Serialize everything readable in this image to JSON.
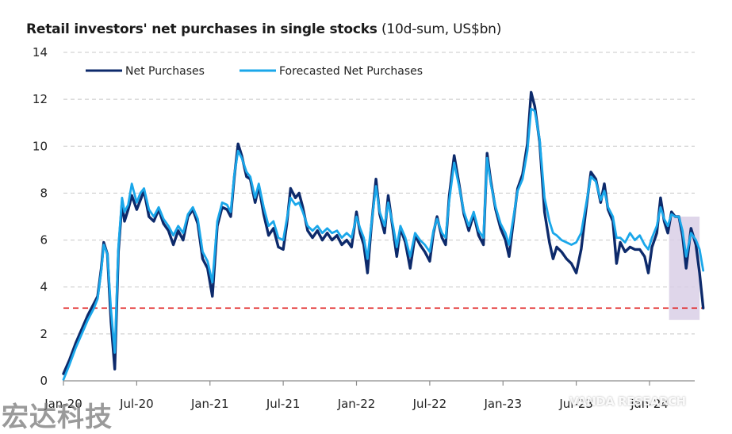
{
  "chart_data": {
    "type": "line",
    "title": "Retail investors' net purchases in single stocks",
    "title_suffix": "(10d-sum, US$bn)",
    "xlabel": "",
    "ylabel": "",
    "ylim": [
      0,
      14
    ],
    "yticks": [
      0,
      2,
      4,
      6,
      8,
      10,
      12,
      14
    ],
    "ytick_labels": [
      "0",
      "2",
      "4",
      "6",
      "8",
      "10",
      "12",
      "14"
    ],
    "x_unit": "months since Jan-20",
    "xlim": [
      0,
      52.5
    ],
    "xticks": [
      0,
      6,
      12,
      18,
      24,
      30,
      36,
      42,
      48
    ],
    "xtick_labels": [
      "Jan-20",
      "Jul-20",
      "Jan-21",
      "Jul-21",
      "Jan-22",
      "Jul-22",
      "Jan-23",
      "Jul-23",
      "Jan-24"
    ],
    "grid": "horizontal-dashed",
    "legend": {
      "placement": "top-left",
      "entries": [
        "Net Purchases",
        "Forecasted Net Purchases"
      ]
    },
    "reference_line": {
      "y": 3.1,
      "color": "#e02020",
      "style": "dashed"
    },
    "highlight_region": {
      "x": [
        49.6,
        52.1
      ],
      "y": [
        2.6,
        7.0
      ],
      "color": "#d9cfe6"
    },
    "series": [
      {
        "name": "Net Purchases",
        "color": "#0d2a6b",
        "points": [
          [
            0,
            0.3
          ],
          [
            0.5,
            0.9
          ],
          [
            1,
            1.6
          ],
          [
            1.5,
            2.2
          ],
          [
            2,
            2.8
          ],
          [
            2.5,
            3.3
          ],
          [
            2.8,
            3.6
          ],
          [
            3.1,
            4.8
          ],
          [
            3.3,
            5.9
          ],
          [
            3.6,
            5.4
          ],
          [
            3.9,
            2.5
          ],
          [
            4.2,
            0.5
          ],
          [
            4.5,
            5.5
          ],
          [
            4.8,
            7.6
          ],
          [
            5.0,
            6.8
          ],
          [
            5.3,
            7.3
          ],
          [
            5.6,
            7.9
          ],
          [
            6.0,
            7.3
          ],
          [
            6.3,
            7.7
          ],
          [
            6.6,
            8.1
          ],
          [
            7.0,
            7.0
          ],
          [
            7.4,
            6.8
          ],
          [
            7.8,
            7.3
          ],
          [
            8.2,
            6.7
          ],
          [
            8.6,
            6.4
          ],
          [
            9.0,
            5.8
          ],
          [
            9.4,
            6.4
          ],
          [
            9.8,
            6.0
          ],
          [
            10.2,
            7.0
          ],
          [
            10.6,
            7.3
          ],
          [
            11.0,
            6.7
          ],
          [
            11.4,
            5.2
          ],
          [
            11.8,
            4.8
          ],
          [
            12.2,
            3.6
          ],
          [
            12.6,
            6.6
          ],
          [
            13.0,
            7.4
          ],
          [
            13.4,
            7.3
          ],
          [
            13.7,
            7.0
          ],
          [
            14.0,
            8.7
          ],
          [
            14.3,
            10.1
          ],
          [
            14.6,
            9.6
          ],
          [
            15.0,
            8.7
          ],
          [
            15.3,
            8.6
          ],
          [
            15.7,
            7.6
          ],
          [
            16.0,
            8.3
          ],
          [
            16.4,
            7.1
          ],
          [
            16.8,
            6.2
          ],
          [
            17.2,
            6.5
          ],
          [
            17.6,
            5.7
          ],
          [
            18.0,
            5.6
          ],
          [
            18.3,
            6.7
          ],
          [
            18.6,
            8.2
          ],
          [
            19.0,
            7.8
          ],
          [
            19.3,
            8.0
          ],
          [
            19.6,
            7.4
          ],
          [
            20.0,
            6.4
          ],
          [
            20.4,
            6.1
          ],
          [
            20.8,
            6.4
          ],
          [
            21.2,
            6.0
          ],
          [
            21.6,
            6.3
          ],
          [
            22.0,
            6.0
          ],
          [
            22.4,
            6.2
          ],
          [
            22.8,
            5.8
          ],
          [
            23.2,
            6.0
          ],
          [
            23.6,
            5.7
          ],
          [
            24.0,
            7.2
          ],
          [
            24.3,
            6.3
          ],
          [
            24.6,
            5.8
          ],
          [
            24.9,
            4.6
          ],
          [
            25.2,
            6.5
          ],
          [
            25.6,
            8.6
          ],
          [
            25.9,
            7.1
          ],
          [
            26.3,
            6.3
          ],
          [
            26.6,
            7.9
          ],
          [
            27.0,
            6.4
          ],
          [
            27.3,
            5.3
          ],
          [
            27.6,
            6.5
          ],
          [
            28.0,
            5.9
          ],
          [
            28.4,
            4.8
          ],
          [
            28.8,
            6.2
          ],
          [
            29.2,
            5.8
          ],
          [
            29.6,
            5.5
          ],
          [
            30.0,
            5.1
          ],
          [
            30.3,
            6.3
          ],
          [
            30.6,
            7.0
          ],
          [
            31.0,
            6.1
          ],
          [
            31.3,
            5.8
          ],
          [
            31.6,
            7.9
          ],
          [
            32.0,
            9.6
          ],
          [
            32.4,
            8.4
          ],
          [
            32.8,
            7.1
          ],
          [
            33.2,
            6.4
          ],
          [
            33.6,
            7.1
          ],
          [
            34.0,
            6.2
          ],
          [
            34.4,
            5.8
          ],
          [
            34.7,
            9.7
          ],
          [
            35.0,
            8.5
          ],
          [
            35.4,
            7.3
          ],
          [
            35.8,
            6.5
          ],
          [
            36.2,
            6.0
          ],
          [
            36.5,
            5.3
          ],
          [
            36.8,
            6.6
          ],
          [
            37.2,
            8.2
          ],
          [
            37.6,
            8.8
          ],
          [
            38.0,
            10.1
          ],
          [
            38.3,
            12.3
          ],
          [
            38.6,
            11.7
          ],
          [
            39.0,
            10.2
          ],
          [
            39.4,
            7.2
          ],
          [
            39.8,
            5.9
          ],
          [
            40.1,
            5.2
          ],
          [
            40.4,
            5.7
          ],
          [
            40.8,
            5.5
          ],
          [
            41.2,
            5.2
          ],
          [
            41.6,
            5.0
          ],
          [
            42.0,
            4.6
          ],
          [
            42.4,
            5.6
          ],
          [
            42.8,
            7.3
          ],
          [
            43.2,
            8.9
          ],
          [
            43.6,
            8.6
          ],
          [
            44.0,
            7.6
          ],
          [
            44.3,
            8.4
          ],
          [
            44.6,
            7.3
          ],
          [
            45.0,
            6.8
          ],
          [
            45.3,
            5.0
          ],
          [
            45.6,
            5.9
          ],
          [
            46.0,
            5.5
          ],
          [
            46.4,
            5.7
          ],
          [
            46.8,
            5.6
          ],
          [
            47.2,
            5.6
          ],
          [
            47.6,
            5.3
          ],
          [
            47.9,
            4.6
          ],
          [
            48.2,
            5.7
          ],
          [
            48.6,
            6.3
          ],
          [
            48.9,
            7.8
          ],
          [
            49.2,
            6.8
          ],
          [
            49.5,
            6.3
          ],
          [
            49.8,
            7.2
          ],
          [
            50.1,
            7.0
          ],
          [
            50.4,
            7.0
          ],
          [
            50.7,
            6.2
          ],
          [
            51.0,
            4.8
          ],
          [
            51.4,
            6.5
          ],
          [
            51.8,
            5.8
          ],
          [
            52.1,
            4.6
          ],
          [
            52.4,
            3.1
          ]
        ]
      },
      {
        "name": "Forecasted Net Purchases",
        "color": "#1aa7ea",
        "points": [
          [
            0,
            0.05
          ],
          [
            0.5,
            0.7
          ],
          [
            1,
            1.4
          ],
          [
            1.5,
            2.0
          ],
          [
            2,
            2.6
          ],
          [
            2.5,
            3.1
          ],
          [
            2.8,
            3.5
          ],
          [
            3.1,
            4.7
          ],
          [
            3.3,
            5.8
          ],
          [
            3.6,
            5.4
          ],
          [
            3.9,
            3.0
          ],
          [
            4.2,
            1.2
          ],
          [
            4.5,
            5.7
          ],
          [
            4.8,
            7.8
          ],
          [
            5.0,
            7.2
          ],
          [
            5.3,
            7.5
          ],
          [
            5.6,
            8.4
          ],
          [
            6.0,
            7.6
          ],
          [
            6.3,
            8.0
          ],
          [
            6.6,
            8.2
          ],
          [
            7.0,
            7.3
          ],
          [
            7.4,
            7.0
          ],
          [
            7.8,
            7.4
          ],
          [
            8.2,
            6.9
          ],
          [
            8.6,
            6.6
          ],
          [
            9.0,
            6.2
          ],
          [
            9.4,
            6.6
          ],
          [
            9.8,
            6.3
          ],
          [
            10.2,
            7.1
          ],
          [
            10.6,
            7.4
          ],
          [
            11.0,
            6.9
          ],
          [
            11.4,
            5.5
          ],
          [
            11.8,
            5.1
          ],
          [
            12.2,
            4.2
          ],
          [
            12.6,
            6.8
          ],
          [
            13.0,
            7.6
          ],
          [
            13.4,
            7.5
          ],
          [
            13.7,
            7.2
          ],
          [
            14.0,
            8.8
          ],
          [
            14.3,
            9.8
          ],
          [
            14.6,
            9.5
          ],
          [
            15.0,
            8.9
          ],
          [
            15.3,
            8.7
          ],
          [
            15.7,
            7.8
          ],
          [
            16.0,
            8.4
          ],
          [
            16.4,
            7.4
          ],
          [
            16.8,
            6.6
          ],
          [
            17.2,
            6.8
          ],
          [
            17.6,
            6.1
          ],
          [
            18.0,
            6.0
          ],
          [
            18.3,
            6.9
          ],
          [
            18.6,
            7.8
          ],
          [
            19.0,
            7.5
          ],
          [
            19.3,
            7.6
          ],
          [
            19.6,
            7.2
          ],
          [
            20.0,
            6.6
          ],
          [
            20.4,
            6.4
          ],
          [
            20.8,
            6.6
          ],
          [
            21.2,
            6.3
          ],
          [
            21.6,
            6.5
          ],
          [
            22.0,
            6.3
          ],
          [
            22.4,
            6.4
          ],
          [
            22.8,
            6.1
          ],
          [
            23.2,
            6.3
          ],
          [
            23.6,
            6.1
          ],
          [
            24.0,
            7.0
          ],
          [
            24.3,
            6.5
          ],
          [
            24.6,
            6.1
          ],
          [
            24.9,
            5.2
          ],
          [
            25.2,
            6.6
          ],
          [
            25.6,
            8.3
          ],
          [
            25.9,
            7.2
          ],
          [
            26.3,
            6.6
          ],
          [
            26.6,
            7.6
          ],
          [
            27.0,
            6.6
          ],
          [
            27.3,
            5.7
          ],
          [
            27.6,
            6.6
          ],
          [
            28.0,
            6.1
          ],
          [
            28.4,
            5.3
          ],
          [
            28.8,
            6.3
          ],
          [
            29.2,
            6.0
          ],
          [
            29.6,
            5.8
          ],
          [
            30.0,
            5.5
          ],
          [
            30.3,
            6.4
          ],
          [
            30.6,
            6.9
          ],
          [
            31.0,
            6.3
          ],
          [
            31.3,
            6.1
          ],
          [
            31.6,
            7.7
          ],
          [
            32.0,
            9.3
          ],
          [
            32.4,
            8.3
          ],
          [
            32.8,
            7.2
          ],
          [
            33.2,
            6.6
          ],
          [
            33.6,
            7.2
          ],
          [
            34.0,
            6.4
          ],
          [
            34.4,
            6.1
          ],
          [
            34.7,
            9.5
          ],
          [
            35.0,
            8.4
          ],
          [
            35.4,
            7.4
          ],
          [
            35.8,
            6.7
          ],
          [
            36.2,
            6.3
          ],
          [
            36.5,
            5.8
          ],
          [
            36.8,
            6.8
          ],
          [
            37.2,
            8.1
          ],
          [
            37.6,
            8.6
          ],
          [
            38.0,
            9.8
          ],
          [
            38.3,
            11.6
          ],
          [
            38.6,
            11.5
          ],
          [
            39.0,
            10.3
          ],
          [
            39.4,
            7.8
          ],
          [
            39.8,
            6.8
          ],
          [
            40.1,
            6.3
          ],
          [
            40.4,
            6.2
          ],
          [
            40.8,
            6.0
          ],
          [
            41.2,
            5.9
          ],
          [
            41.6,
            5.8
          ],
          [
            42.0,
            5.9
          ],
          [
            42.4,
            6.3
          ],
          [
            42.8,
            7.5
          ],
          [
            43.2,
            8.7
          ],
          [
            43.6,
            8.5
          ],
          [
            44.0,
            7.7
          ],
          [
            44.3,
            8.1
          ],
          [
            44.6,
            7.4
          ],
          [
            45.0,
            7.0
          ],
          [
            45.3,
            6.1
          ],
          [
            45.6,
            6.1
          ],
          [
            46.0,
            5.9
          ],
          [
            46.4,
            6.3
          ],
          [
            46.8,
            6.0
          ],
          [
            47.2,
            6.2
          ],
          [
            47.6,
            5.8
          ],
          [
            47.9,
            5.6
          ],
          [
            48.2,
            6.1
          ],
          [
            48.6,
            6.6
          ],
          [
            48.9,
            7.4
          ],
          [
            49.2,
            6.9
          ],
          [
            49.5,
            6.6
          ],
          [
            49.8,
            7.1
          ],
          [
            50.1,
            7.0
          ],
          [
            50.4,
            7.0
          ],
          [
            50.7,
            6.4
          ],
          [
            51.0,
            5.3
          ],
          [
            51.4,
            6.3
          ],
          [
            51.8,
            6.0
          ],
          [
            52.1,
            5.6
          ],
          [
            52.4,
            4.7
          ]
        ]
      }
    ]
  },
  "watermarks": {
    "cn": "宏达科技",
    "source": "VANDA RESEARCH"
  }
}
